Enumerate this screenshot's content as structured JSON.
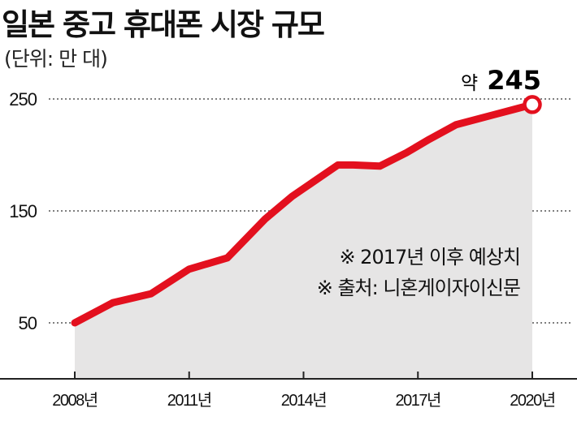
{
  "title": "일본 중고 휴대폰 시장 규모",
  "unit_label": "(단위: 만 대)",
  "chart_data": {
    "type": "area",
    "x": [
      2008,
      2009,
      2010,
      2011,
      2012,
      2013,
      2013.7,
      2014.9,
      2015.3,
      2016,
      2016.7,
      2017.3,
      2018,
      2019,
      2020
    ],
    "series": [
      {
        "values": [
          50,
          68,
          76,
          98,
          108,
          143,
          163,
          191,
          191,
          190,
          202,
          214,
          227,
          236,
          245
        ]
      }
    ],
    "ylim": [
      0,
      265
    ],
    "xlim": [
      2008,
      2020
    ],
    "yticks": [
      50,
      150,
      250
    ],
    "xtick_values": [
      2008,
      2011,
      2014,
      2017,
      2020
    ],
    "xtick_labels": [
      "2008년",
      "2011년",
      "2014년",
      "2017년",
      "2020년"
    ],
    "grid": true,
    "callout": {
      "prefix": "약",
      "value": "245"
    },
    "annotations": [
      "※ 2017년 이후 예상치",
      "※ 출처: 니혼게이자이신문"
    ],
    "colors": {
      "line": "#e3101e",
      "area": "#e6e5e5",
      "grid": "#555555",
      "axis": "#222222"
    }
  }
}
